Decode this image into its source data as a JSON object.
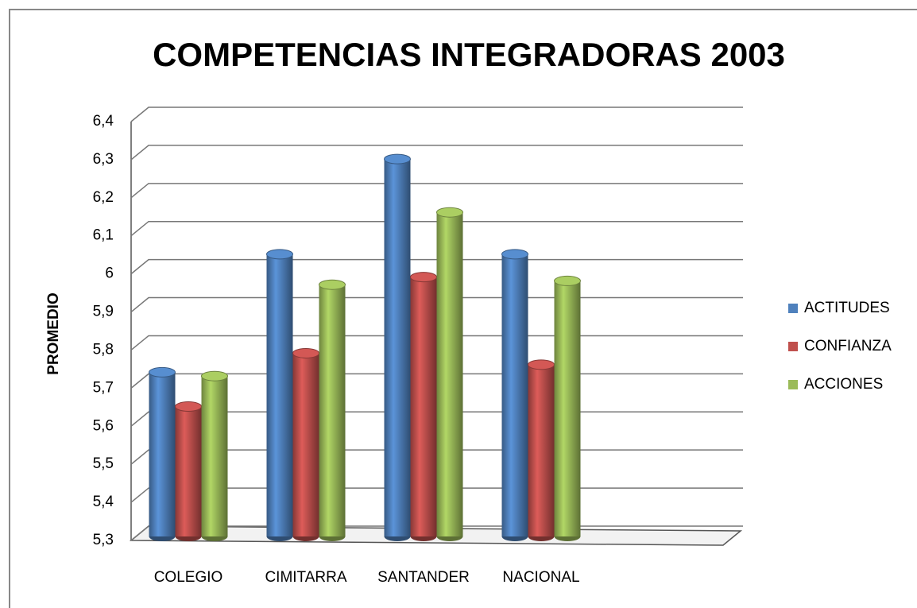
{
  "chart_data": {
    "type": "bar",
    "title": "COMPETENCIAS INTEGRADORAS 2003",
    "y_label": "PROMEDIO",
    "categories": [
      "COLEGIO",
      "CIMITARRA",
      "SANTANDER",
      "NACIONAL"
    ],
    "series": [
      {
        "name": "ACTITUDES",
        "color": "#4f81bd",
        "values": [
          5.75,
          6.06,
          6.31,
          6.06
        ]
      },
      {
        "name": "CONFIANZA",
        "color": "#c0504d",
        "values": [
          5.66,
          5.8,
          6.0,
          5.77
        ]
      },
      {
        "name": "ACCIONES",
        "color": "#9bbb59",
        "values": [
          5.74,
          5.98,
          6.17,
          5.99
        ]
      }
    ],
    "ylim": [
      5.3,
      6.4
    ],
    "yticks": [
      {
        "value": 5.3,
        "label": "5,3"
      },
      {
        "value": 5.4,
        "label": "5,4"
      },
      {
        "value": 5.5,
        "label": "5,5"
      },
      {
        "value": 5.6,
        "label": "5,6"
      },
      {
        "value": 5.7,
        "label": "5,7"
      },
      {
        "value": 5.8,
        "label": "5,8"
      },
      {
        "value": 5.9,
        "label": "5,9"
      },
      6,
      {
        "value": 6.1,
        "label": "6,1"
      },
      {
        "value": 6.2,
        "label": "6,2"
      },
      {
        "value": 6.3,
        "label": "6,3"
      },
      {
        "value": 6.4,
        "label": "6,4"
      }
    ],
    "grid": true,
    "legend": "right"
  }
}
